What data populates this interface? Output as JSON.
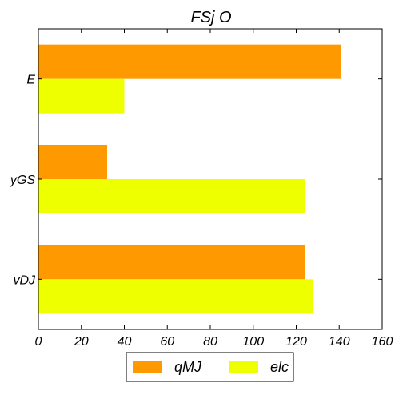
{
  "chart_data": {
    "type": "bar",
    "orientation": "horizontal",
    "title": "FSj O",
    "xlabel": "",
    "ylabel": "",
    "categories": [
      "E",
      "yGS",
      "vDJ"
    ],
    "series": [
      {
        "name": "qMJ",
        "values": [
          141,
          32,
          124
        ],
        "color": "#ff9900"
      },
      {
        "name": "elc",
        "values": [
          40,
          124,
          128
        ],
        "color": "#eeff00"
      }
    ],
    "xlim": [
      0,
      160
    ],
    "xticks": [
      0,
      20,
      40,
      60,
      80,
      100,
      120,
      140,
      160
    ],
    "grid": false,
    "legend_position": "bottom"
  }
}
